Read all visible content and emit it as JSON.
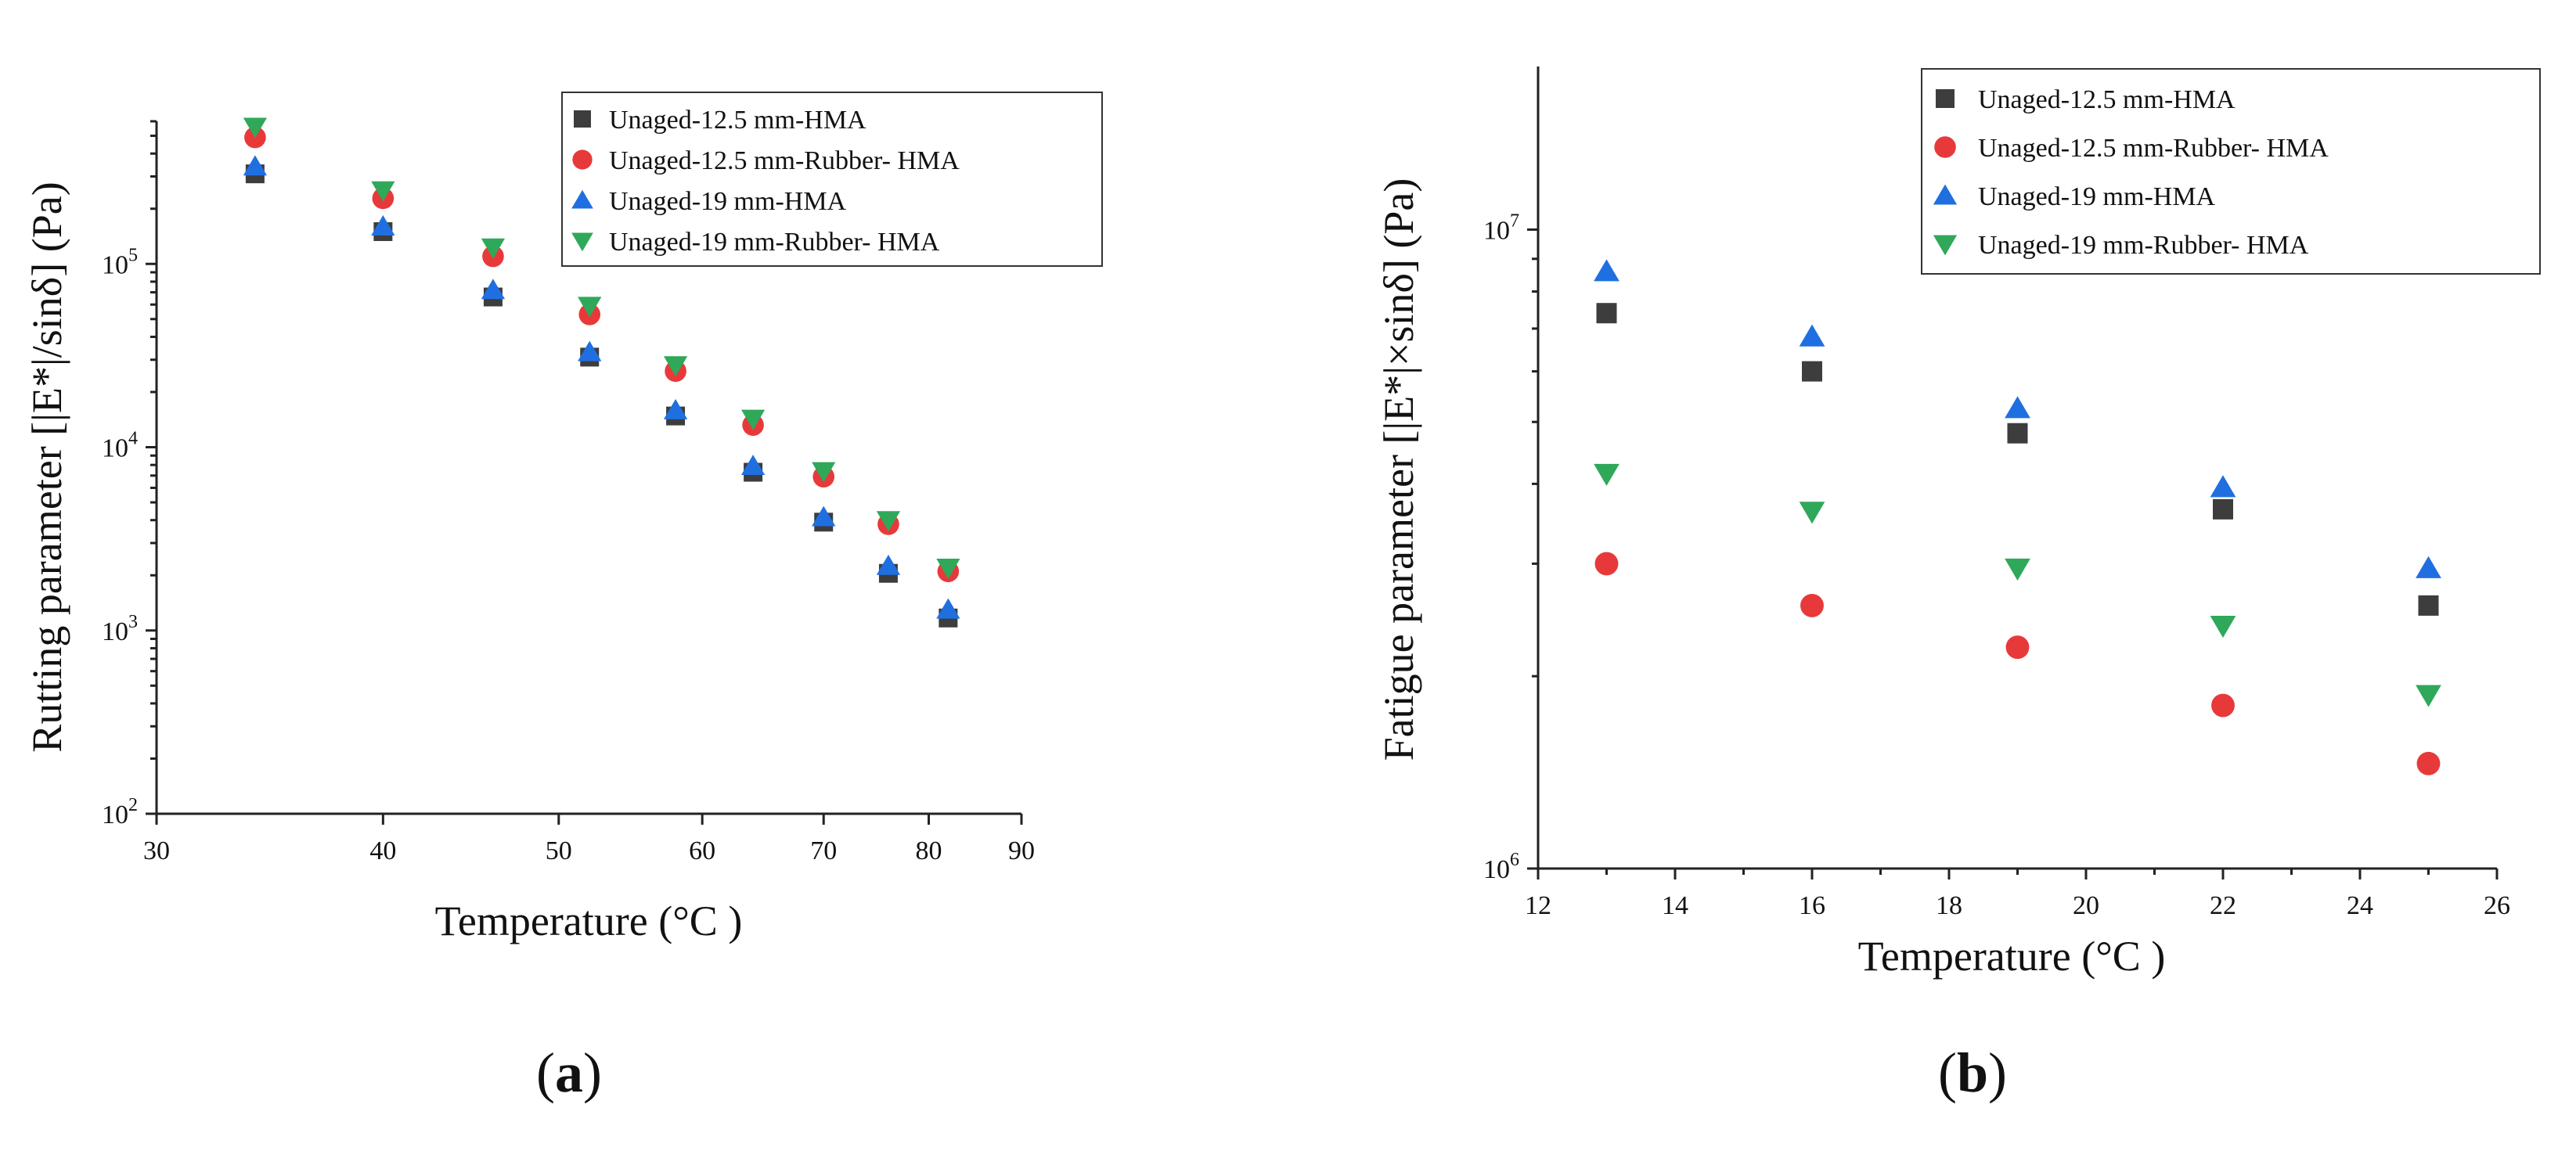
{
  "figure": {
    "panel_a_label": {
      "open": "(",
      "letter": "a",
      "close": ")"
    },
    "panel_b_label": {
      "open": "(",
      "letter": "b",
      "close": ")"
    }
  },
  "chart_data": [
    {
      "id": "a",
      "type": "scatter",
      "xscale": "log",
      "yscale": "log",
      "xlabel": "Temperature (°C )",
      "ylabel": "Rutting parameter [|E*|/sinδ] (Pa)",
      "xlim": [
        30,
        90
      ],
      "ylim": [
        100,
        600000
      ],
      "xticks": [
        30,
        40,
        50,
        60,
        70,
        80,
        90
      ],
      "yticks": [
        {
          "value": 100,
          "base": "10",
          "exp": "2"
        },
        {
          "value": 1000,
          "base": "10",
          "exp": "3"
        },
        {
          "value": 10000,
          "base": "10",
          "exp": "4"
        },
        {
          "value": 100000,
          "base": "10",
          "exp": "5"
        }
      ],
      "legend": "top-right",
      "x": [
        34,
        40,
        46,
        52,
        58,
        64,
        70,
        76,
        82
      ],
      "series": [
        {
          "name": "Unaged-12.5 mm-HMA",
          "marker": "square",
          "color": "#3d3d3d",
          "values": [
            310000,
            150000,
            66000,
            31000,
            14800,
            7300,
            3900,
            2050,
            1170
          ]
        },
        {
          "name": "Unaged-12.5 mm-Rubber- HMA",
          "marker": "circle",
          "color": "#e8393a",
          "values": [
            490000,
            228000,
            110000,
            53000,
            26000,
            13200,
            6900,
            3800,
            2100
          ]
        },
        {
          "name": "Unaged-19 mm-HMA",
          "marker": "triangle-up",
          "color": "#1f6fe0",
          "values": [
            340000,
            160000,
            72000,
            33000,
            15900,
            7900,
            4150,
            2250,
            1300
          ]
        },
        {
          "name": "Unaged-19 mm-Rubber- HMA",
          "marker": "triangle-down",
          "color": "#2fa85a",
          "values": [
            560000,
            252000,
            123000,
            59000,
            28000,
            14300,
            7400,
            4000,
            2200
          ]
        }
      ]
    },
    {
      "id": "b",
      "type": "scatter",
      "xscale": "linear",
      "yscale": "log",
      "xlabel": "Temperature (°C )",
      "ylabel": "Fatigue parameter [|E*|×sinδ] (Pa)",
      "xlim": [
        12,
        26
      ],
      "ylim": [
        1000000,
        18000000
      ],
      "xticks": [
        12,
        14,
        16,
        18,
        20,
        22,
        24,
        26
      ],
      "yticks": [
        {
          "value": 1000000,
          "base": "10",
          "exp": "6"
        },
        {
          "value": 10000000,
          "base": "10",
          "exp": "7"
        }
      ],
      "legend": "top-right",
      "x": [
        13,
        16,
        19,
        22,
        25
      ],
      "series": [
        {
          "name": "Unaged-12.5 mm-HMA",
          "marker": "square",
          "color": "#3d3d3d",
          "values": [
            7400000,
            6000000,
            4800000,
            3650000,
            2580000
          ]
        },
        {
          "name": "Unaged-12.5 mm-Rubber- HMA",
          "marker": "circle",
          "color": "#e8393a",
          "values": [
            3000000,
            2580000,
            2220000,
            1800000,
            1460000
          ]
        },
        {
          "name": "Unaged-19 mm-HMA",
          "marker": "triangle-up",
          "color": "#1f6fe0",
          "values": [
            8600000,
            6800000,
            5250000,
            3950000,
            2950000
          ]
        },
        {
          "name": "Unaged-19 mm-Rubber- HMA",
          "marker": "triangle-down",
          "color": "#2fa85a",
          "values": [
            4150000,
            3620000,
            2950000,
            2400000,
            1870000
          ]
        }
      ]
    }
  ]
}
